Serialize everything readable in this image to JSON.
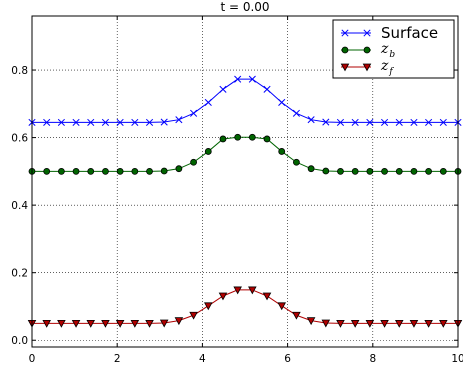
{
  "chart_data": {
    "type": "line",
    "title": "t = 0.00",
    "xlabel": "",
    "ylabel": "",
    "xlim": [
      0,
      10
    ],
    "ylim": [
      -0.02,
      0.96
    ],
    "xticks": [
      0,
      2,
      4,
      6,
      8,
      10
    ],
    "xtick_labels": [
      "0",
      "2",
      "4",
      "6",
      "8",
      "10"
    ],
    "yticks": [
      0.0,
      0.2,
      0.4,
      0.6,
      0.8
    ],
    "ytick_labels": [
      "0.0",
      "0.2",
      "0.4",
      "0.6",
      "0.8"
    ],
    "grid": true,
    "legend_position": "top-right",
    "x": [
      0.0,
      0.345,
      0.69,
      1.034,
      1.379,
      1.724,
      2.069,
      2.414,
      2.759,
      3.103,
      3.448,
      3.793,
      4.138,
      4.483,
      4.828,
      5.172,
      5.517,
      5.862,
      6.207,
      6.552,
      6.897,
      7.241,
      7.586,
      7.931,
      8.276,
      8.621,
      8.966,
      9.31,
      9.655,
      10.0
    ],
    "series": [
      {
        "name": "Surface",
        "color": "#0000ff",
        "marker": "x",
        "values": [
          0.645,
          0.645,
          0.645,
          0.645,
          0.645,
          0.645,
          0.645,
          0.645,
          0.645,
          0.646,
          0.653,
          0.672,
          0.704,
          0.743,
          0.773,
          0.773,
          0.743,
          0.704,
          0.672,
          0.653,
          0.646,
          0.645,
          0.645,
          0.645,
          0.645,
          0.645,
          0.645,
          0.645,
          0.645,
          0.645
        ]
      },
      {
        "name": "z_b",
        "label_main": "z",
        "label_sub": "b",
        "color": "#006400",
        "marker": "o",
        "values": [
          0.5,
          0.5,
          0.5,
          0.5,
          0.5,
          0.5,
          0.5,
          0.5,
          0.5,
          0.501,
          0.508,
          0.527,
          0.559,
          0.596,
          0.601,
          0.601,
          0.596,
          0.559,
          0.527,
          0.508,
          0.501,
          0.5,
          0.5,
          0.5,
          0.5,
          0.5,
          0.5,
          0.5,
          0.5,
          0.5
        ]
      },
      {
        "name": "z_f",
        "label_main": "z",
        "label_sub": "f",
        "color": "#b00000",
        "marker": "v",
        "values": [
          0.05,
          0.05,
          0.05,
          0.05,
          0.05,
          0.05,
          0.05,
          0.05,
          0.05,
          0.051,
          0.058,
          0.074,
          0.102,
          0.131,
          0.149,
          0.149,
          0.131,
          0.102,
          0.074,
          0.058,
          0.051,
          0.05,
          0.05,
          0.05,
          0.05,
          0.05,
          0.05,
          0.05,
          0.05,
          0.05
        ]
      }
    ]
  }
}
